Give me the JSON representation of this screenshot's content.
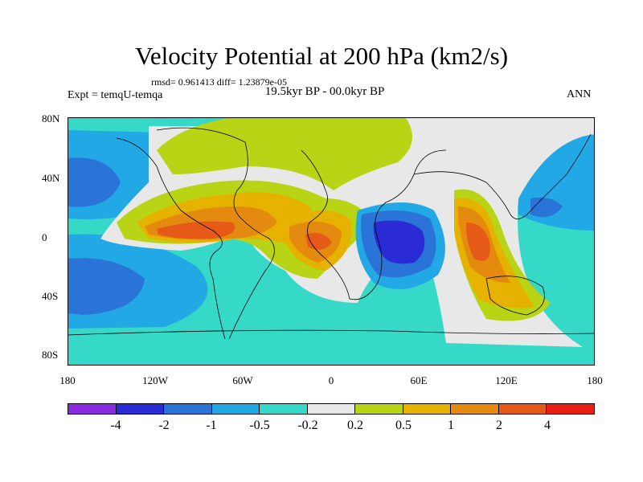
{
  "title": "Velocity Potential at 200 hPa (km2/s)",
  "stats": "rmsd= 0.961413 diff= 1.23879e-05",
  "expt": "Expt = temqU-temqa",
  "period": "19.5kyr BP - 00.0kyr BP",
  "season": "ANN",
  "lat_labels": [
    "80N",
    "40N",
    "0",
    "40S",
    "80S"
  ],
  "lon_labels": [
    "180",
    "120W",
    "60W",
    "0",
    "60E",
    "120E",
    "180"
  ],
  "colorbar": {
    "colors": [
      "#8a2be2",
      "#2b2bd6",
      "#2a74d8",
      "#23a8e6",
      "#36d8c8",
      "#e8e8e8",
      "#b8d415",
      "#e5b200",
      "#e48a0e",
      "#e65a18",
      "#e81e14"
    ],
    "labels": [
      "-4",
      "-2",
      "-1",
      "-0.5",
      "-0.2",
      "0.2",
      "0.5",
      "1",
      "2",
      "4"
    ]
  }
}
